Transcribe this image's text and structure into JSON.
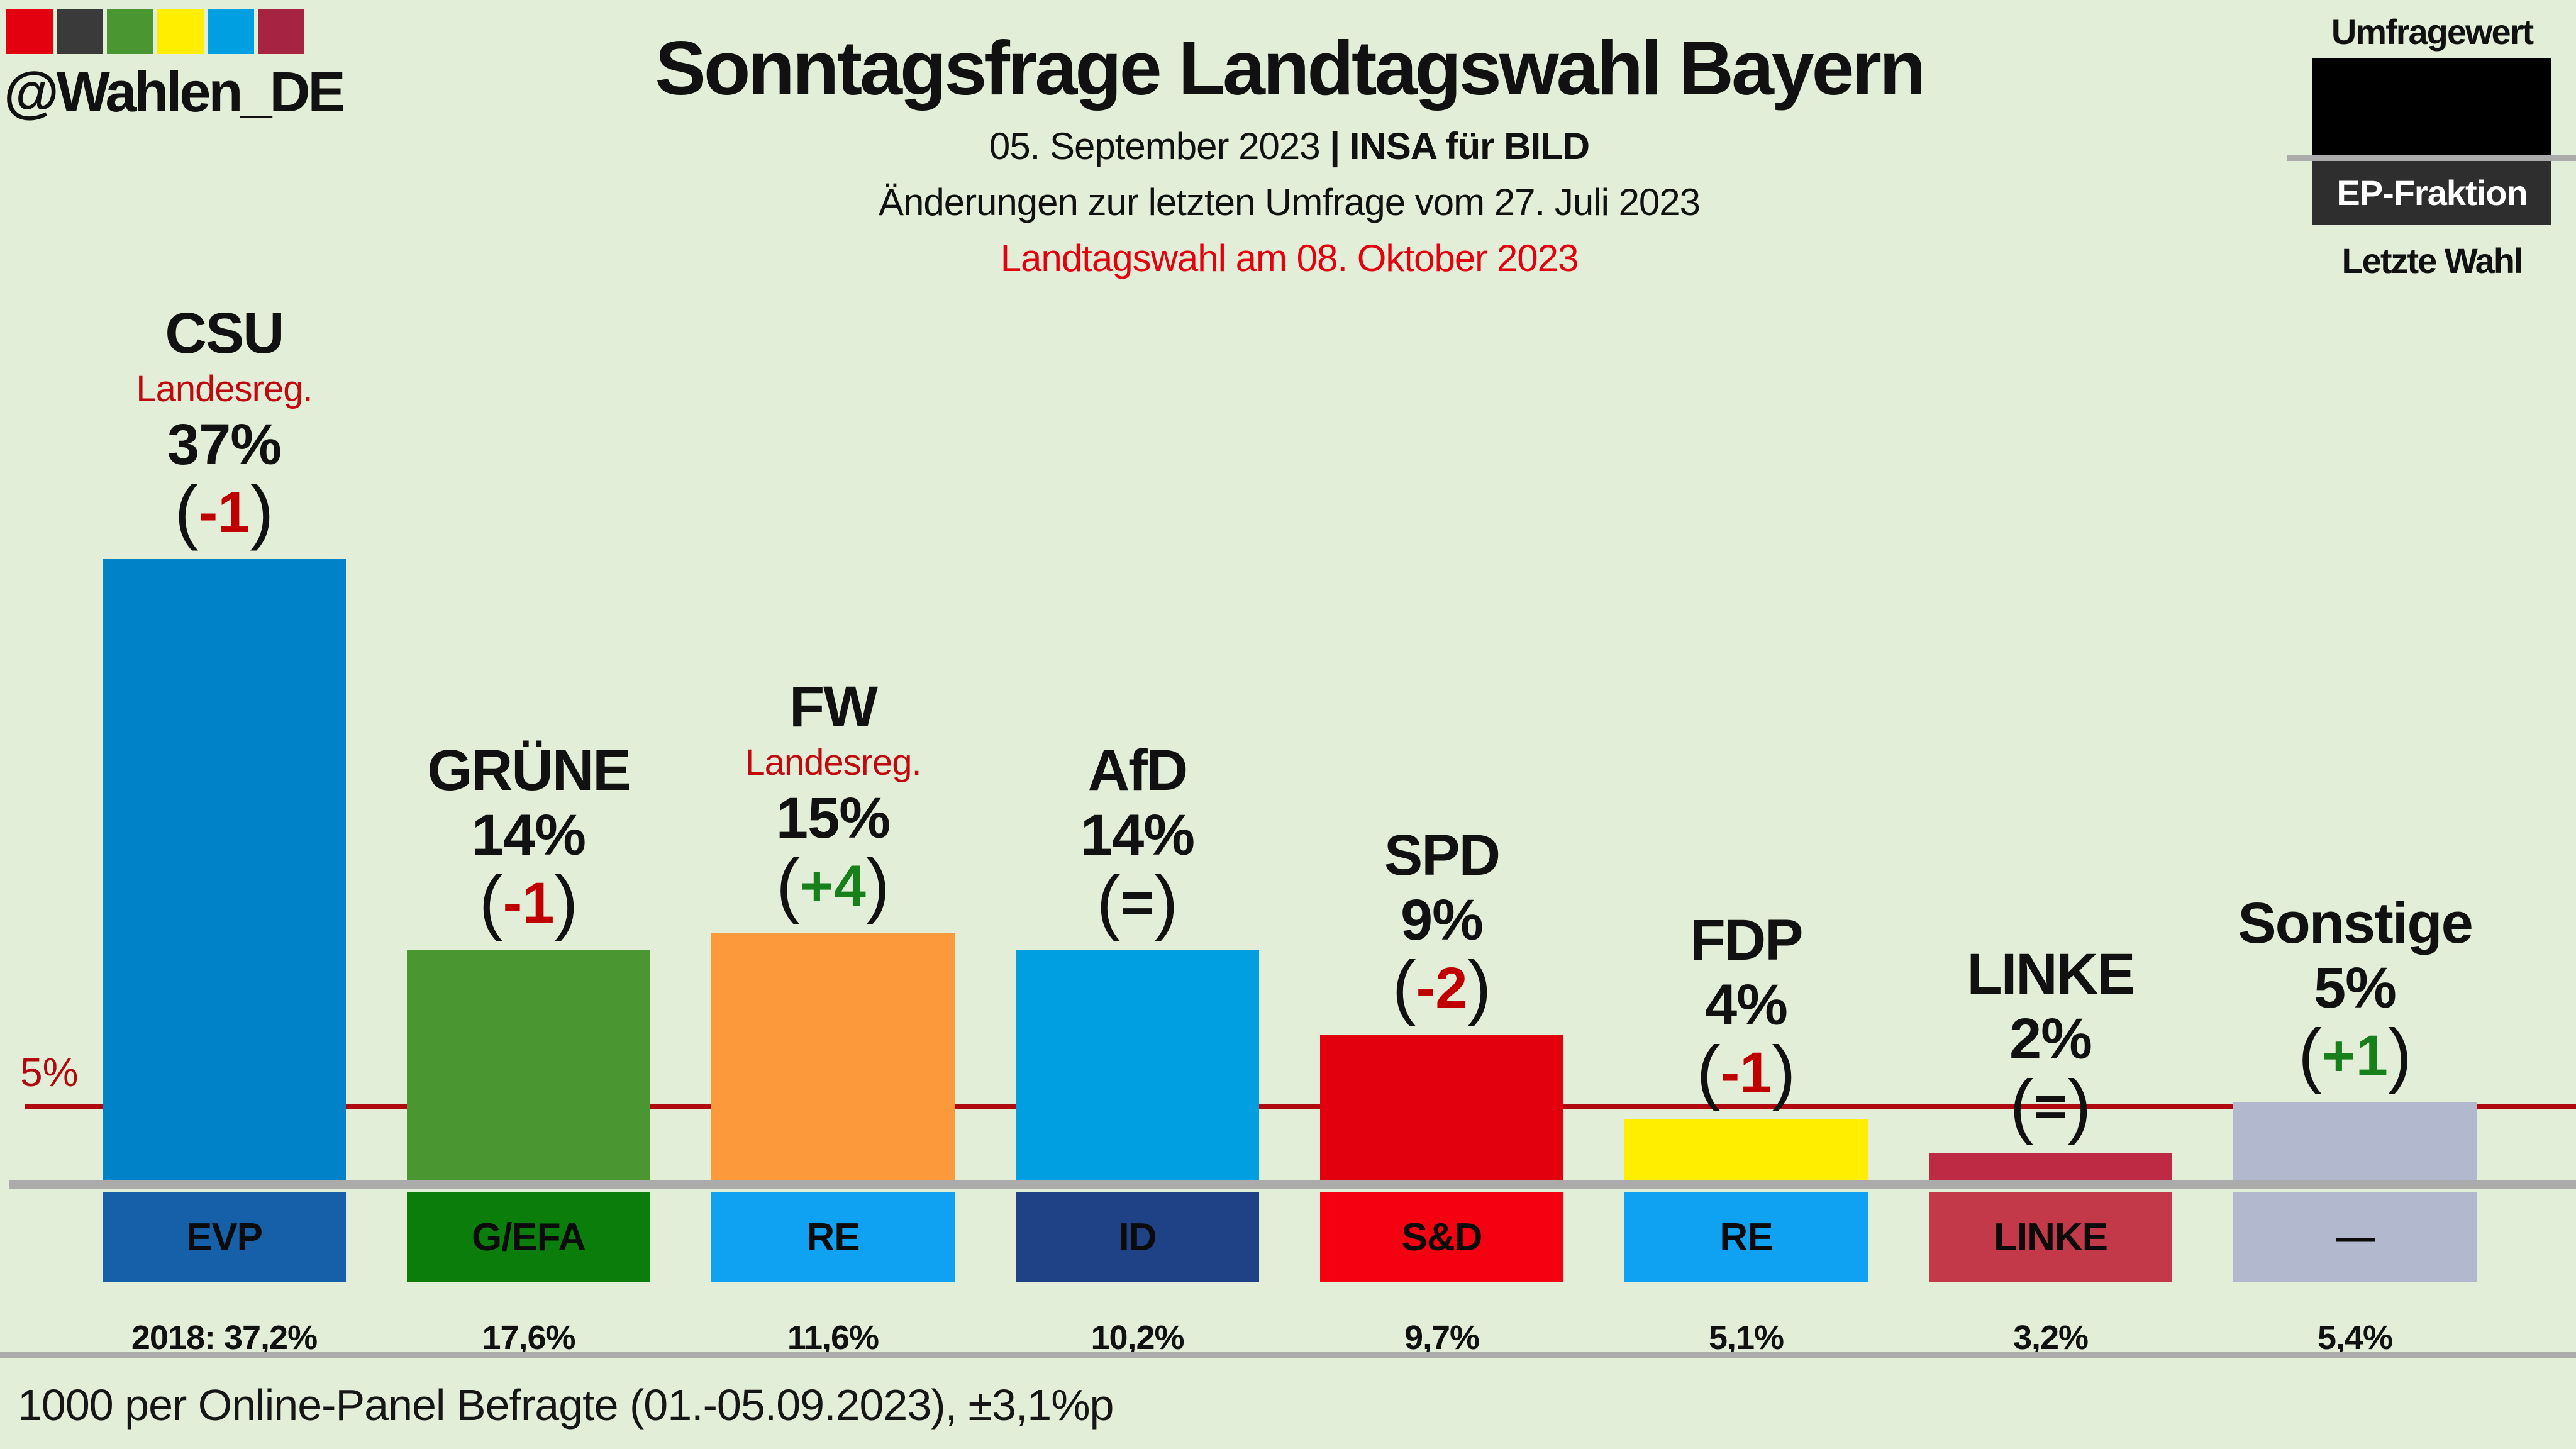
{
  "brand": {
    "handle": "@Wahlen_DE",
    "square_colors": [
      "#E3000F",
      "#3A3A3A",
      "#4A9630",
      "#FFEE00",
      "#009FE1",
      "#A72342"
    ]
  },
  "header": {
    "title": "Sonntagsfrage Landtagswahl Bayern",
    "date": "05. September 2023 ",
    "source": "| INSA für BILD",
    "change_note": "Änderungen zur letzten Umfrage vom 27. Juli 2023",
    "election_note": "Landtagswahl am 08. Oktober 2023"
  },
  "legend": {
    "survey_label": "Umfragewert",
    "ep_label": "EP-Fraktion",
    "last_label": "Letzte Wahl"
  },
  "axis": {
    "threshold_label": "5%"
  },
  "footer": {
    "note": "1000 per Online-Panel Befragte (01.-05.09.2023), ±3,1%p"
  },
  "colors": {
    "background": "#E2EED8",
    "threshold_line": "#B00A10",
    "baseline": "#ABABAB",
    "change_negative": "#C00000",
    "change_positive": "#17801A",
    "change_neutral": "#111111",
    "note_red": "#C00A10",
    "election_red": "#E3000F"
  },
  "chart_data": {
    "type": "bar",
    "unit": "percent",
    "ylim": [
      0,
      40
    ],
    "grid": false,
    "threshold": {
      "value": 5,
      "label": "5%"
    },
    "categories": [
      "CSU",
      "GRÜNE",
      "FW",
      "AfD",
      "SPD",
      "FDP",
      "LINKE",
      "Sonstige"
    ],
    "values": [
      37,
      14,
      15,
      14,
      9,
      4,
      2,
      5
    ],
    "changes": [
      "-1",
      "-1",
      "+4",
      "=",
      "-2",
      "-1",
      "=",
      "+1"
    ],
    "parties": [
      {
        "name": "CSU",
        "note": "Landesreg.",
        "value": 37,
        "value_label": "37%",
        "change": "-1",
        "change_dir": "neg",
        "bar_color": "#0082C8",
        "ep_group": "EVP",
        "ep_color": "#1560A8",
        "last_result": "2018: 37,2%"
      },
      {
        "name": "GRÜNE",
        "note": "",
        "value": 14,
        "value_label": "14%",
        "change": "-1",
        "change_dir": "neg",
        "bar_color": "#4A9630",
        "ep_group": "G/EFA",
        "ep_color": "#0A7D0A",
        "last_result": "17,6%"
      },
      {
        "name": "FW",
        "note": "Landesreg.",
        "value": 15,
        "value_label": "15%",
        "change": "+4",
        "change_dir": "pos",
        "bar_color": "#FB993B",
        "ep_group": "RE",
        "ep_color": "#0FA2F2",
        "last_result": "11,6%"
      },
      {
        "name": "AfD",
        "note": "",
        "value": 14,
        "value_label": "14%",
        "change": "=",
        "change_dir": "zero",
        "bar_color": "#009FE1",
        "ep_group": "ID",
        "ep_color": "#1F4287",
        "last_result": "10,2%"
      },
      {
        "name": "SPD",
        "note": "",
        "value": 9,
        "value_label": "9%",
        "change": "-2",
        "change_dir": "neg",
        "bar_color": "#E2000F",
        "ep_group": "S&D",
        "ep_color": "#F40010",
        "last_result": "9,7%"
      },
      {
        "name": "FDP",
        "note": "",
        "value": 4,
        "value_label": "4%",
        "change": "-1",
        "change_dir": "neg",
        "bar_color": "#FFEE00",
        "ep_group": "RE",
        "ep_color": "#0FA2F2",
        "last_result": "5,1%"
      },
      {
        "name": "LINKE",
        "note": "",
        "value": 2,
        "value_label": "2%",
        "change": "=",
        "change_dir": "zero",
        "bar_color": "#BE2A44",
        "ep_group": "LINKE",
        "ep_color": "#C3394A",
        "last_result": "3,2%"
      },
      {
        "name": "Sonstige",
        "note": "",
        "value": 5,
        "value_label": "5%",
        "change": "+1",
        "change_dir": "pos",
        "bar_color": "#B2B8CD",
        "ep_group": "—",
        "ep_color": "#B2B8CD",
        "last_result": "5,4%"
      }
    ]
  }
}
